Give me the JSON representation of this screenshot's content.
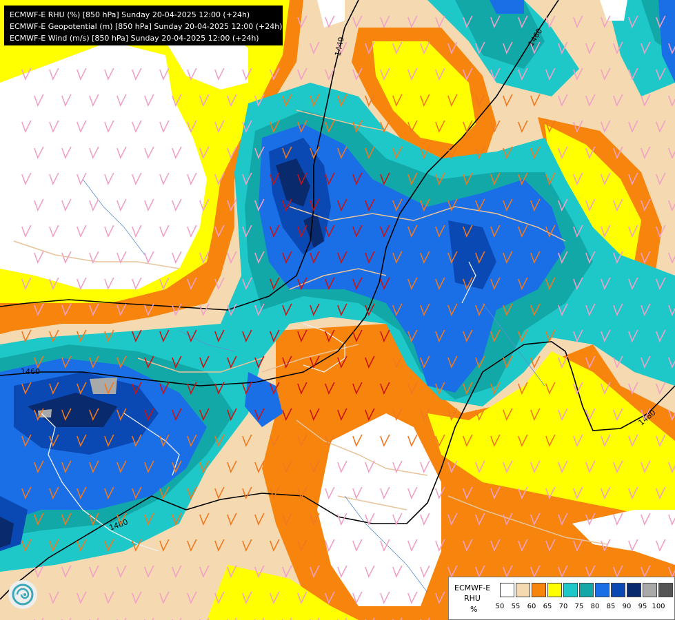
{
  "header": {
    "lines": [
      "ECMWF-E RHU (%) [850 hPa] Sunday 20-04-2025 12:00 (+24h)",
      "ECMWF-E Geopotential (m) [850 hPa] Sunday 20-04-2025 12:00 (+24h)",
      "ECMWF-E Wind (m/s) [850 hPa] Sunday 20-04-2025 12:00 (+24h)"
    ]
  },
  "map": {
    "contour_labels": [
      "1440",
      "1460",
      "1460",
      "1480",
      "1480"
    ],
    "colors": {
      "c50": "#ffffff",
      "c55": "#f5d9b0",
      "c60": "#f7850d",
      "c65": "#ffff00",
      "c70": "#1ec8c8",
      "c75": "#13a8a8",
      "c80": "#1a6ee6",
      "c85": "#0a48b4",
      "c90": "#0a2a6e",
      "c95": "#a9a9a9",
      "c100": "#555555",
      "barb_weak": "#f0a0c8",
      "barb_mid": "#f07820",
      "barb_strong": "#c81414"
    }
  },
  "legend": {
    "model": "ECMWF-E",
    "variable": "RHU",
    "unit": "%",
    "ticks": [
      "50",
      "55",
      "60",
      "65",
      "70",
      "75",
      "80",
      "85",
      "90",
      "95",
      "100"
    ],
    "colors": [
      "#ffffff",
      "#f5d9b0",
      "#f7850d",
      "#ffff00",
      "#1ec8c8",
      "#13a8a8",
      "#1a6ee6",
      "#0a48b4",
      "#0a2a6e",
      "#a9a9a9",
      "#555555"
    ]
  },
  "logo": {
    "icon": "ecmwf-swirl-icon"
  }
}
